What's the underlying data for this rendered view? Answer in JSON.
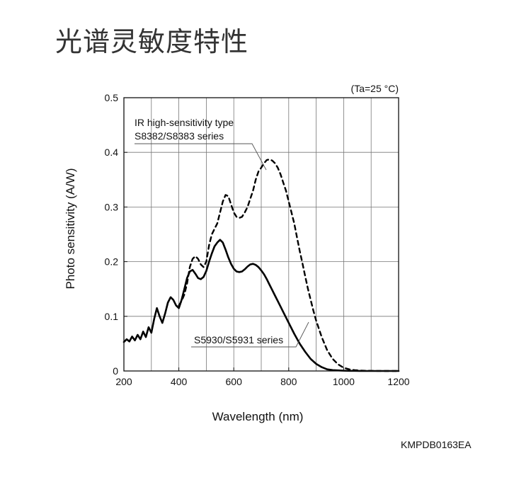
{
  "page": {
    "title": "光谱灵敏度特性",
    "figure_code": "KMPDB0163EA"
  },
  "chart_data": {
    "type": "line",
    "title": "",
    "condition_note": "(Ta=25 °C)",
    "xlabel": "Wavelength (nm)",
    "ylabel": "Photo sensitivity (A/W)",
    "xlim": [
      200,
      1200
    ],
    "ylim": [
      0,
      0.5
    ],
    "xticks": [
      200,
      400,
      600,
      800,
      1000,
      1200
    ],
    "xtick_labels": [
      "200",
      "400",
      "600",
      "800",
      "1000",
      "1200"
    ],
    "yticks": [
      0,
      0.1,
      0.2,
      0.3,
      0.4,
      0.5
    ],
    "ytick_labels": [
      "0",
      "0.1",
      "0.2",
      "0.3",
      "0.4",
      "0.5"
    ],
    "x_minor_step": 100,
    "grid": true,
    "series": [
      {
        "name": "S5930/S5931 series",
        "style": "solid",
        "color": "#000000",
        "x": [
          200,
          210,
          220,
          230,
          240,
          250,
          260,
          270,
          280,
          290,
          300,
          310,
          320,
          330,
          340,
          350,
          360,
          370,
          380,
          390,
          400,
          410,
          420,
          430,
          440,
          450,
          460,
          470,
          480,
          490,
          500,
          510,
          520,
          530,
          540,
          550,
          560,
          570,
          580,
          590,
          600,
          610,
          620,
          630,
          640,
          650,
          660,
          670,
          680,
          690,
          700,
          710,
          720,
          730,
          740,
          750,
          760,
          770,
          780,
          790,
          800,
          820,
          840,
          860,
          880,
          900,
          920,
          940,
          960,
          980,
          1000,
          1020,
          1040,
          1060,
          1080,
          1100,
          1120,
          1140,
          1160,
          1180,
          1200
        ],
        "y": [
          0.053,
          0.058,
          0.054,
          0.063,
          0.056,
          0.066,
          0.058,
          0.072,
          0.062,
          0.08,
          0.07,
          0.095,
          0.115,
          0.1,
          0.088,
          0.105,
          0.125,
          0.135,
          0.13,
          0.12,
          0.115,
          0.13,
          0.15,
          0.17,
          0.182,
          0.185,
          0.178,
          0.17,
          0.168,
          0.172,
          0.183,
          0.2,
          0.215,
          0.228,
          0.235,
          0.24,
          0.235,
          0.222,
          0.208,
          0.196,
          0.187,
          0.182,
          0.181,
          0.182,
          0.186,
          0.191,
          0.195,
          0.196,
          0.194,
          0.19,
          0.184,
          0.177,
          0.168,
          0.158,
          0.148,
          0.138,
          0.128,
          0.118,
          0.108,
          0.098,
          0.088,
          0.068,
          0.05,
          0.035,
          0.022,
          0.013,
          0.007,
          0.003,
          0.0015,
          0.001,
          0.0005,
          0.0003,
          0.0002,
          0.0001,
          0,
          0,
          0,
          0,
          0,
          0,
          0
        ]
      },
      {
        "name": "IR high-sensitivity type S8382/S8383 series",
        "style": "dashed",
        "color": "#000000",
        "x": [
          400,
          410,
          420,
          430,
          440,
          450,
          460,
          470,
          480,
          490,
          500,
          510,
          520,
          530,
          540,
          550,
          560,
          570,
          580,
          590,
          600,
          610,
          620,
          630,
          640,
          650,
          660,
          670,
          680,
          690,
          700,
          710,
          720,
          730,
          740,
          750,
          760,
          770,
          780,
          790,
          800,
          810,
          820,
          830,
          840,
          850,
          860,
          870,
          880,
          890,
          900,
          920,
          940,
          960,
          980,
          1000,
          1020,
          1040,
          1060,
          1080,
          1100,
          1120,
          1140,
          1160,
          1180,
          1200
        ],
        "y": [
          0.12,
          0.128,
          0.14,
          0.16,
          0.19,
          0.205,
          0.21,
          0.205,
          0.195,
          0.19,
          0.2,
          0.23,
          0.25,
          0.26,
          0.27,
          0.29,
          0.31,
          0.322,
          0.32,
          0.305,
          0.29,
          0.282,
          0.28,
          0.282,
          0.29,
          0.3,
          0.315,
          0.33,
          0.35,
          0.365,
          0.372,
          0.38,
          0.386,
          0.387,
          0.385,
          0.38,
          0.372,
          0.36,
          0.345,
          0.33,
          0.31,
          0.29,
          0.27,
          0.245,
          0.22,
          0.197,
          0.173,
          0.15,
          0.13,
          0.11,
          0.092,
          0.062,
          0.038,
          0.022,
          0.012,
          0.006,
          0.003,
          0.0015,
          0.0008,
          0.0004,
          0.0002,
          0.0001,
          0,
          0,
          0,
          0
        ]
      }
    ],
    "annotations": [
      {
        "lines": [
          "IR high-sensitivity type",
          "S8382/S8383 series"
        ],
        "target_series": 1
      },
      {
        "lines": [
          "S5930/S5931 series"
        ],
        "target_series": 0
      }
    ]
  }
}
